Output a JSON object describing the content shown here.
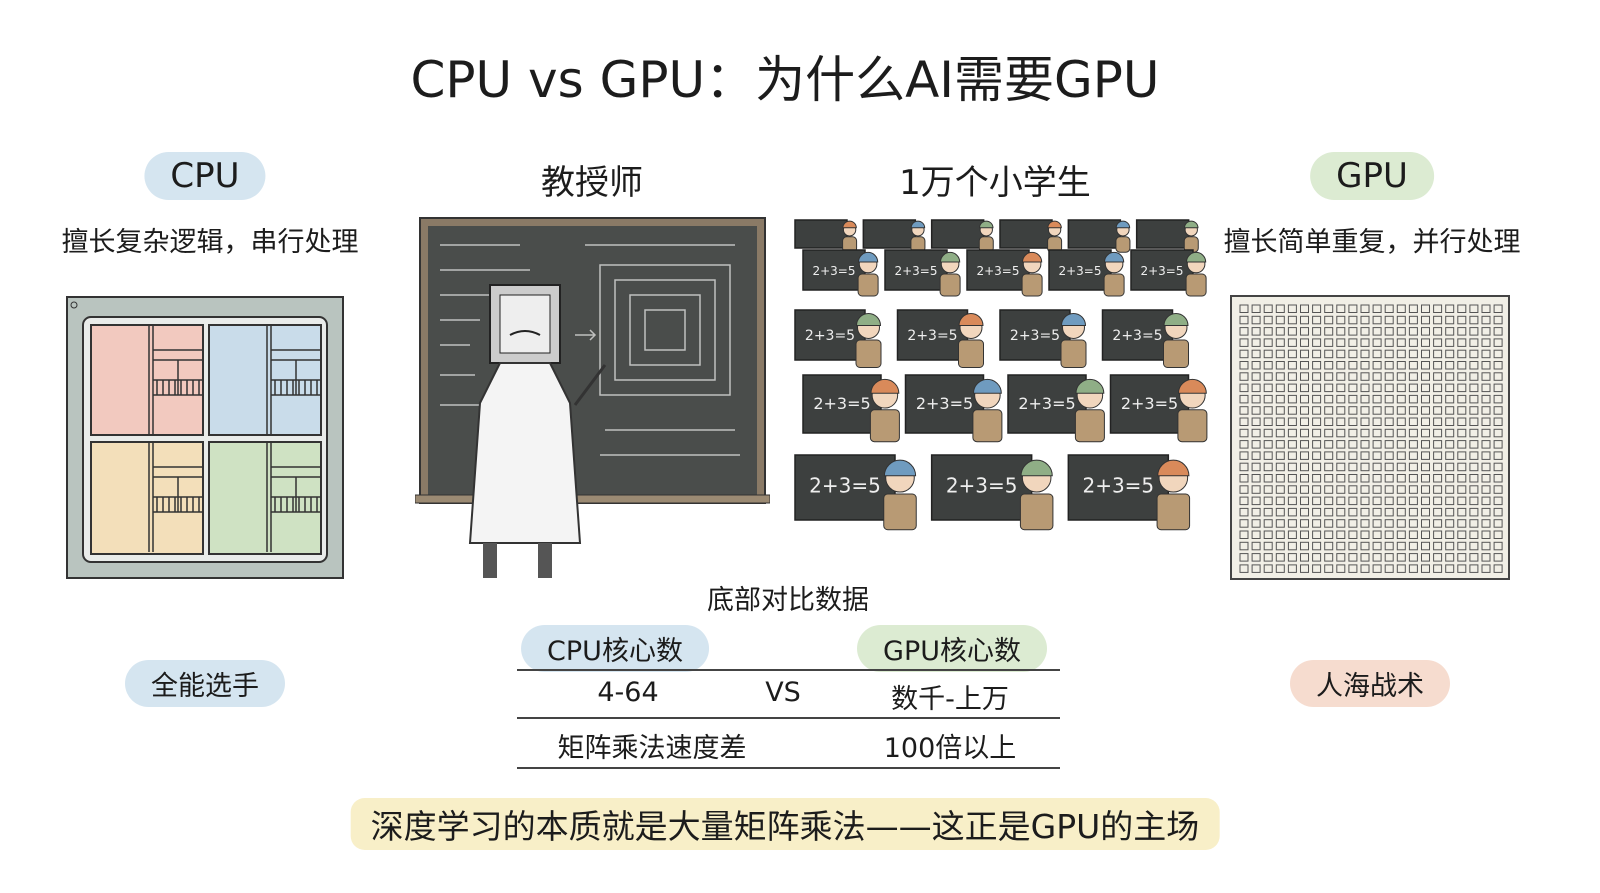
{
  "title": "CPU vs GPU：为什么AI需要GPU",
  "cpu": {
    "label": "CPU",
    "description": "擅长复杂逻辑，串行处理",
    "tag": "全能选手",
    "color": "#d5e5f0",
    "tag_color": "#d5e5f0"
  },
  "teacher": {
    "label": "教授师"
  },
  "students": {
    "label": "1万个小学生",
    "board_text": "2+3=5"
  },
  "gpu": {
    "label": "GPU",
    "description": "擅长简单重复，并行处理",
    "tag": "人海战术",
    "color": "#dcebd2",
    "tag_color": "#f6dccf"
  },
  "comparison": {
    "title": "底部对比数据",
    "header_cpu": "CPU核心数",
    "header_gpu": "GPU核心数",
    "rows": [
      {
        "cpu": "4-64",
        "mid": "VS",
        "gpu": "数千-上万"
      },
      {
        "cpu": "矩阵乘法速度差",
        "mid": "",
        "gpu": "100倍以上"
      }
    ]
  },
  "conclusion": "深度学习的本质就是大量矩阵乘法——这正是GPU的主场",
  "conclusion_highlight": "#f8efc8"
}
